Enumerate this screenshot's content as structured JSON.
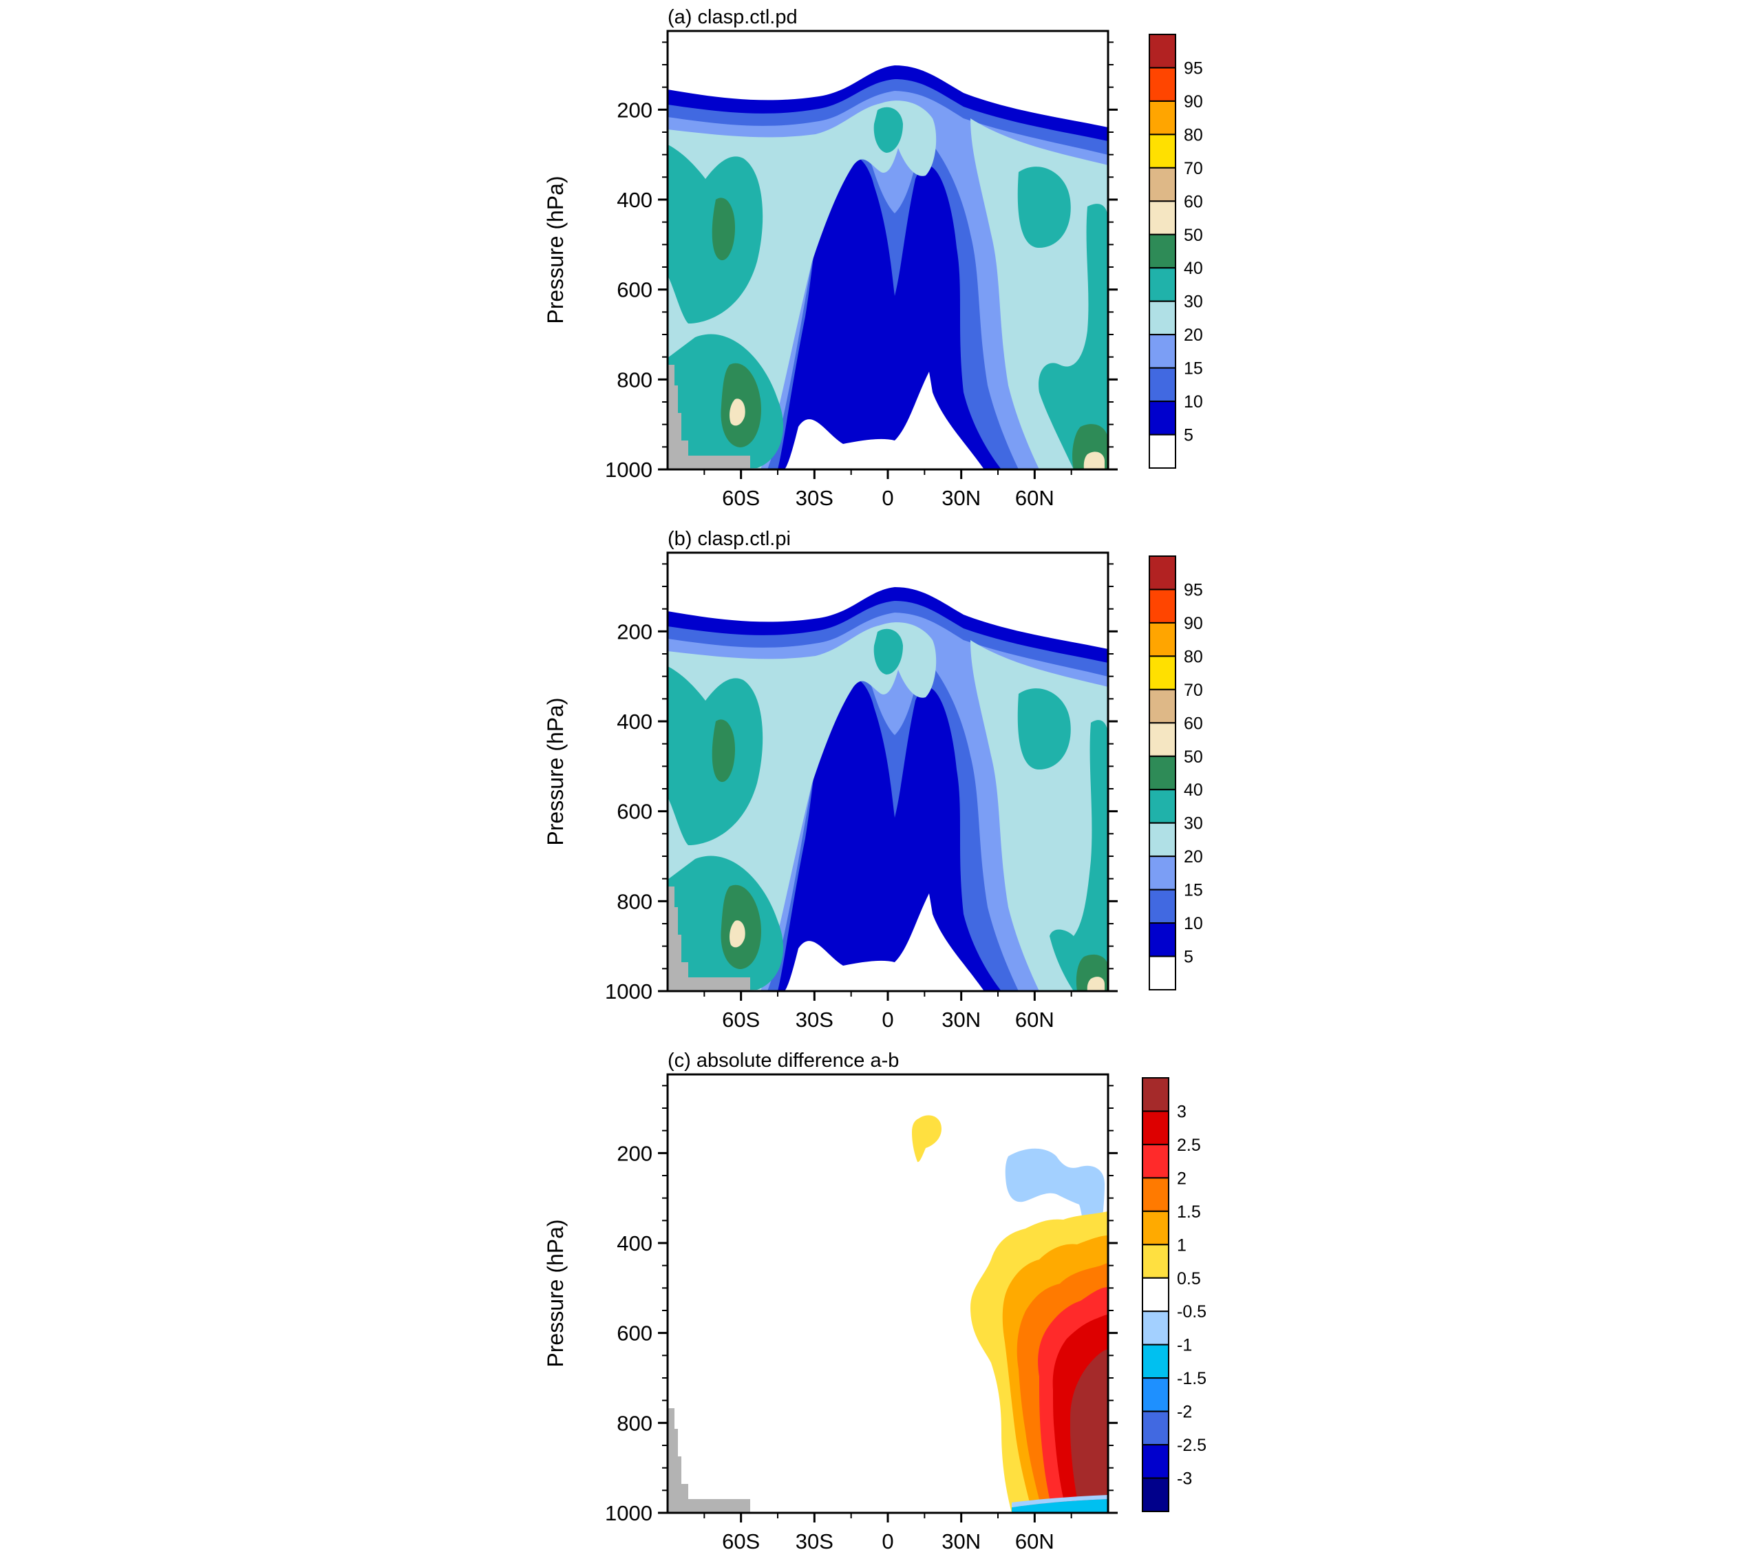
{
  "figure": {
    "ylabel": "Pressure (hPa)",
    "colors": {
      "land_mask": "#b3b3b3",
      "frame": "#000000"
    }
  },
  "chart_data": [
    {
      "type": "contour",
      "title": "(a) clasp.ctl.pd",
      "xlabel": "",
      "ylabel": "Pressure (hPa)",
      "x_ticks": [
        "60S",
        "30S",
        "0",
        "30N",
        "60N"
      ],
      "x_tick_values": [
        -60,
        -30,
        0,
        30,
        60
      ],
      "xlim": [
        -90,
        90
      ],
      "y_ticks": [
        "200",
        "400",
        "600",
        "800",
        "1000"
      ],
      "y_tick_values": [
        200,
        400,
        600,
        800,
        1000
      ],
      "ylim": [
        1000,
        25
      ],
      "legend_placement": "right",
      "colorbar": {
        "labels": [
          "95",
          "90",
          "80",
          "70",
          "60",
          "50",
          "40",
          "30",
          "20",
          "15",
          "10",
          "5"
        ],
        "colors": [
          "#b22222",
          "#ff4500",
          "#ffa500",
          "#ffe000",
          "#deb887",
          "#f5e6c2",
          "#2e8b57",
          "#20b2aa",
          "#b0e0e6",
          "#7b9ef5",
          "#4169e1",
          "#0000cd",
          "#ffffff"
        ]
      }
    },
    {
      "type": "contour",
      "title": "(b) clasp.ctl.pi",
      "xlabel": "",
      "ylabel": "Pressure (hPa)",
      "x_ticks": [
        "60S",
        "30S",
        "0",
        "30N",
        "60N"
      ],
      "x_tick_values": [
        -60,
        -30,
        0,
        30,
        60
      ],
      "xlim": [
        -90,
        90
      ],
      "y_ticks": [
        "200",
        "400",
        "600",
        "800",
        "1000"
      ],
      "y_tick_values": [
        200,
        400,
        600,
        800,
        1000
      ],
      "ylim": [
        1000,
        25
      ],
      "legend_placement": "right",
      "colorbar": {
        "labels": [
          "95",
          "90",
          "80",
          "70",
          "60",
          "50",
          "40",
          "30",
          "20",
          "15",
          "10",
          "5"
        ],
        "colors": [
          "#b22222",
          "#ff4500",
          "#ffa500",
          "#ffe000",
          "#deb887",
          "#f5e6c2",
          "#2e8b57",
          "#20b2aa",
          "#b0e0e6",
          "#7b9ef5",
          "#4169e1",
          "#0000cd",
          "#ffffff"
        ]
      }
    },
    {
      "type": "contour",
      "title": "(c) absolute difference a-b",
      "xlabel": "",
      "ylabel": "Pressure (hPa)",
      "x_ticks": [
        "60S",
        "30S",
        "0",
        "30N",
        "60N"
      ],
      "x_tick_values": [
        -60,
        -30,
        0,
        30,
        60
      ],
      "xlim": [
        -90,
        90
      ],
      "y_ticks": [
        "200",
        "400",
        "600",
        "800",
        "1000"
      ],
      "y_tick_values": [
        200,
        400,
        600,
        800,
        1000
      ],
      "ylim": [
        1000,
        25
      ],
      "legend_placement": "right",
      "colorbar": {
        "labels": [
          "3",
          "2.5",
          "2",
          "1.5",
          "1",
          "0.5",
          "-0.5",
          "-1",
          "-1.5",
          "-2",
          "-2.5",
          "-3"
        ],
        "colors": [
          "#a52a2a",
          "#dd0000",
          "#ff2a2a",
          "#ff7a00",
          "#ffaa00",
          "#ffe040",
          "#ffffff",
          "#a3d0ff",
          "#00c0f0",
          "#1e90ff",
          "#4169e1",
          "#0000cd",
          "#00008b"
        ]
      }
    }
  ]
}
